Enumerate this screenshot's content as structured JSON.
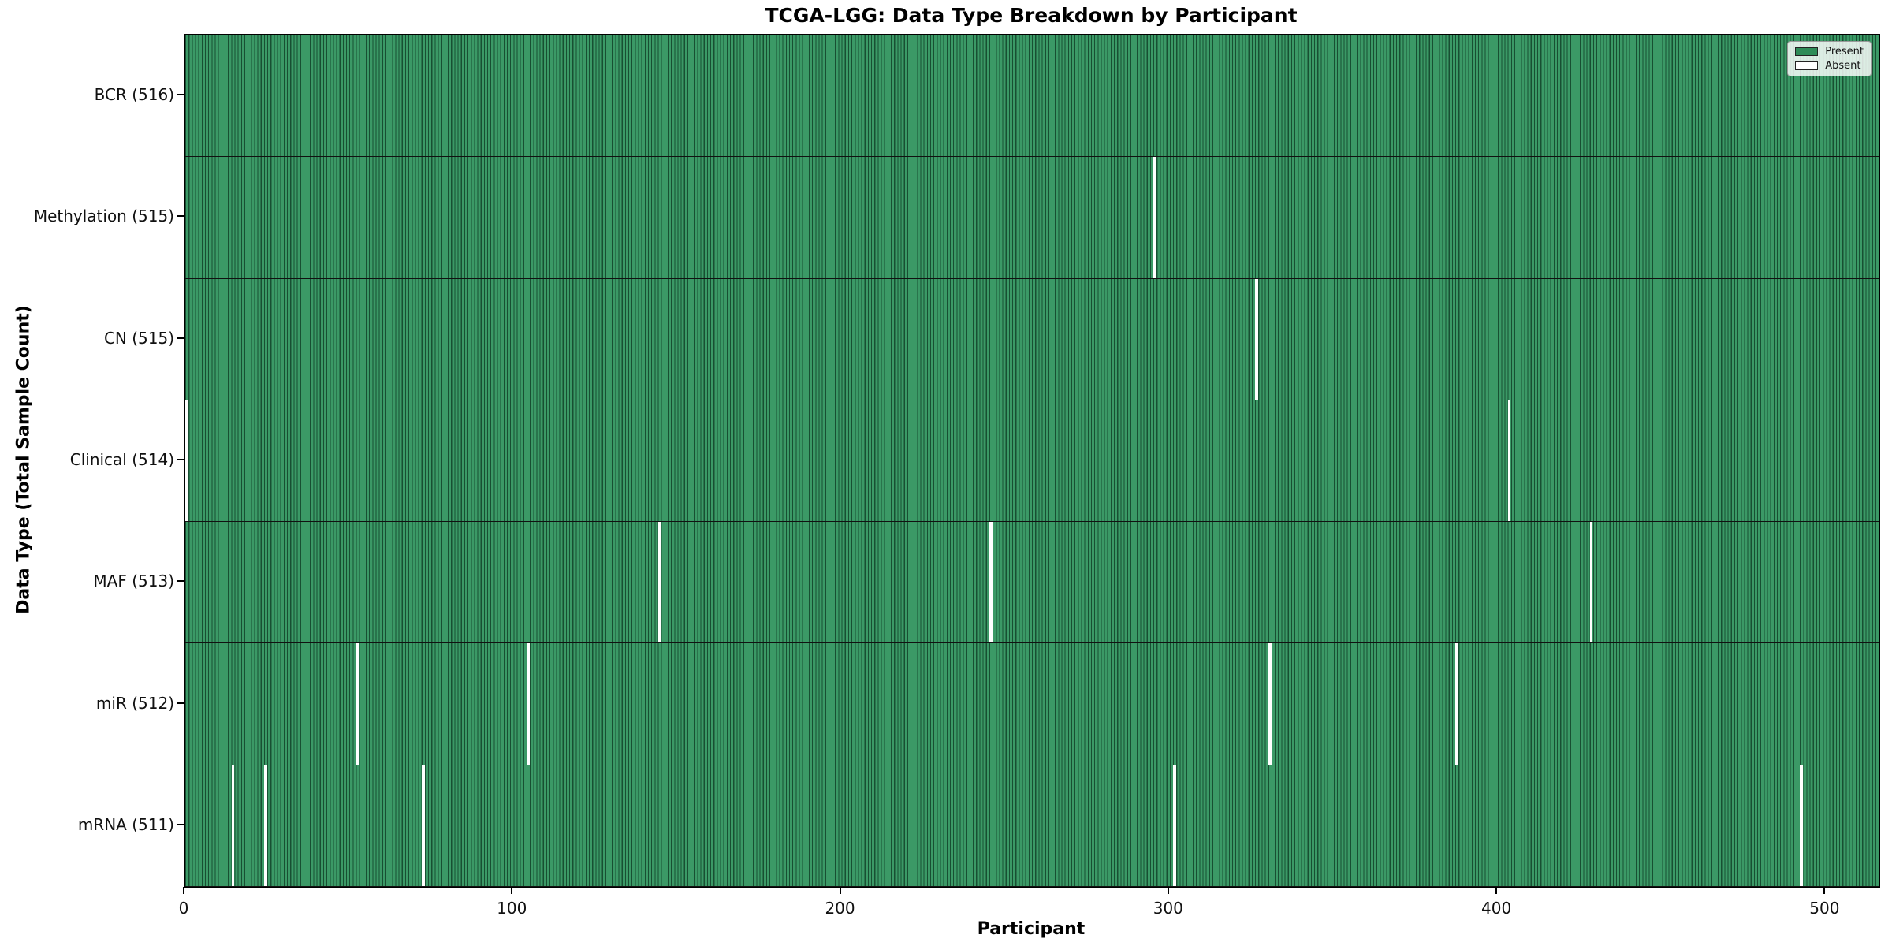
{
  "chart_data": {
    "type": "heatmap",
    "title": "TCGA-LGG: Data Type Breakdown by Participant",
    "xlabel": "Participant",
    "ylabel": "Data Type (Total Sample Count)",
    "n_participants": 516,
    "x_ticks": [
      0,
      100,
      200,
      300,
      400,
      500
    ],
    "xlim": [
      0,
      516
    ],
    "grid": false,
    "legend": {
      "position": "upper right",
      "entries": [
        {
          "label": "Present",
          "color": "#2e8b57"
        },
        {
          "label": "Absent",
          "color": "#ffffff"
        }
      ]
    },
    "colors": {
      "present": "#2e8b57",
      "absent": "#ffffff",
      "bar_edge": "#13301f",
      "spine": "#000000"
    },
    "rows": [
      {
        "label": "BCR (516)",
        "data_type": "BCR",
        "total_samples": 516,
        "absent_participants": []
      },
      {
        "label": "Methylation (515)",
        "data_type": "Methylation",
        "total_samples": 515,
        "absent_participants": [
          295
        ]
      },
      {
        "label": "CN (515)",
        "data_type": "CN",
        "total_samples": 515,
        "absent_participants": [
          326
        ]
      },
      {
        "label": "Clinical (514)",
        "data_type": "Clinical",
        "total_samples": 514,
        "absent_participants": [
          0,
          403
        ]
      },
      {
        "label": "MAF (513)",
        "data_type": "MAF",
        "total_samples": 513,
        "absent_participants": [
          144,
          245,
          428
        ]
      },
      {
        "label": "miR (512)",
        "data_type": "miR",
        "total_samples": 512,
        "absent_participants": [
          52,
          104,
          330,
          387
        ]
      },
      {
        "label": "mRNA (511)",
        "data_type": "mRNA",
        "total_samples": 511,
        "absent_participants": [
          14,
          24,
          72,
          301,
          492
        ]
      }
    ]
  }
}
